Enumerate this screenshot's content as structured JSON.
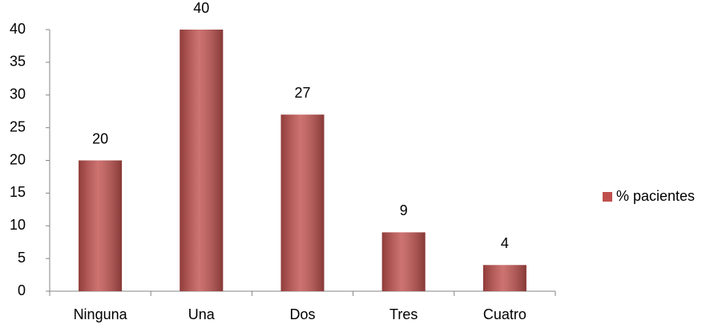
{
  "chart_data": {
    "type": "bar",
    "categories": [
      "Ninguna",
      "Una",
      "Dos",
      "Tres",
      "Cuatro"
    ],
    "series": [
      {
        "name": "% pacientes",
        "color": "#c0504d",
        "values": [
          20,
          40,
          27,
          9,
          4
        ]
      }
    ],
    "ylim": [
      0,
      40
    ],
    "yticks": [
      0,
      5,
      10,
      15,
      20,
      25,
      30,
      35,
      40
    ],
    "grid": false,
    "legend": "right",
    "data_labels": true
  }
}
